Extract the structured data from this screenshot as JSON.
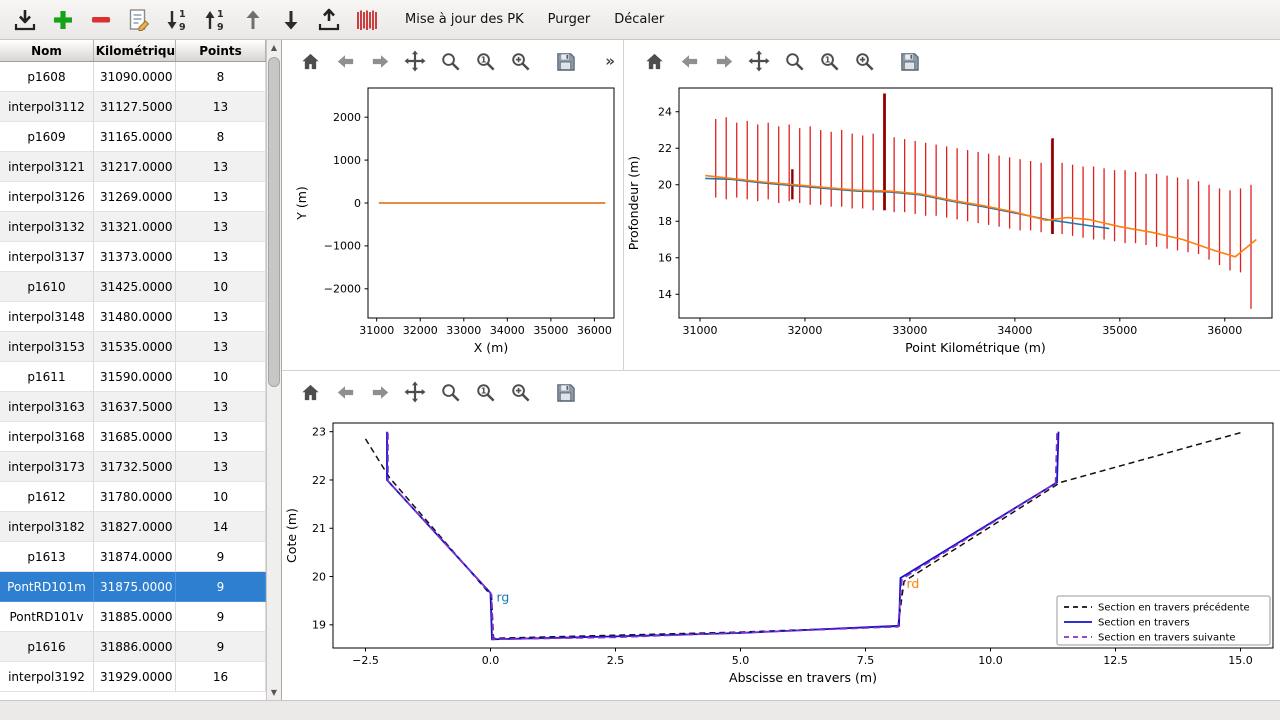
{
  "colors": {
    "selection": "#2e7fd0",
    "bars_red": "#e02020",
    "dark_red": "#8b0000",
    "blue": "#1f77b4",
    "orange": "#ff7f0e",
    "section_blue": "#1212cc",
    "section_purple": "#8b2fc9",
    "section_prev_black": "#111111"
  },
  "main_toolbar": {
    "icons": [
      "import",
      "add",
      "remove",
      "edit",
      "sort-numeric-desc",
      "sort-numeric-asc",
      "move-up",
      "move-down",
      "export",
      "sections"
    ],
    "buttons": [
      {
        "id": "maj-pk",
        "label": "Mise à jour des PK"
      },
      {
        "id": "purger",
        "label": "Purger"
      },
      {
        "id": "decaler",
        "label": "Décaler"
      }
    ]
  },
  "table": {
    "columns": [
      "Nom",
      "t Kilométrique",
      "Points"
    ],
    "rows": [
      {
        "nom": "p1608",
        "pk": "31090.0000",
        "points": "8",
        "selected": false
      },
      {
        "nom": "interpol3112",
        "pk": "31127.5000",
        "points": "13",
        "selected": false
      },
      {
        "nom": "p1609",
        "pk": "31165.0000",
        "points": "8",
        "selected": false
      },
      {
        "nom": "interpol3121",
        "pk": "31217.0000",
        "points": "13",
        "selected": false
      },
      {
        "nom": "interpol3126",
        "pk": "31269.0000",
        "points": "13",
        "selected": false
      },
      {
        "nom": "interpol3132",
        "pk": "31321.0000",
        "points": "13",
        "selected": false
      },
      {
        "nom": "interpol3137",
        "pk": "31373.0000",
        "points": "13",
        "selected": false
      },
      {
        "nom": "p1610",
        "pk": "31425.0000",
        "points": "10",
        "selected": false
      },
      {
        "nom": "interpol3148",
        "pk": "31480.0000",
        "points": "13",
        "selected": false
      },
      {
        "nom": "interpol3153",
        "pk": "31535.0000",
        "points": "13",
        "selected": false
      },
      {
        "nom": "p1611",
        "pk": "31590.0000",
        "points": "10",
        "selected": false
      },
      {
        "nom": "interpol3163",
        "pk": "31637.5000",
        "points": "13",
        "selected": false
      },
      {
        "nom": "interpol3168",
        "pk": "31685.0000",
        "points": "13",
        "selected": false
      },
      {
        "nom": "interpol3173",
        "pk": "31732.5000",
        "points": "13",
        "selected": false
      },
      {
        "nom": "p1612",
        "pk": "31780.0000",
        "points": "10",
        "selected": false
      },
      {
        "nom": "interpol3182",
        "pk": "31827.0000",
        "points": "14",
        "selected": false
      },
      {
        "nom": "p1613",
        "pk": "31874.0000",
        "points": "9",
        "selected": false
      },
      {
        "nom": "PontRD101m",
        "pk": "31875.0000",
        "points": "9",
        "selected": true
      },
      {
        "nom": "PontRD101v",
        "pk": "31885.0000",
        "points": "9",
        "selected": false
      },
      {
        "nom": "p1616",
        "pk": "31886.0000",
        "points": "9",
        "selected": false
      },
      {
        "nom": "interpol3192",
        "pk": "31929.0000",
        "points": "16",
        "selected": false
      }
    ]
  },
  "plot_toolbar": {
    "icons": [
      "home",
      "back",
      "forward",
      "pan",
      "zoom",
      "zoom-one",
      "zoom-plus",
      "save"
    ],
    "overflow": "»"
  },
  "chart_data": [
    {
      "id": "plan",
      "type": "line",
      "xlabel": "X (m)",
      "ylabel": "Y (m)",
      "xlim": [
        30800,
        36450
      ],
      "ylim": [
        -2680,
        2680
      ],
      "xticks": {
        "values": [
          31000,
          32000,
          33000,
          34000,
          35000,
          36000
        ],
        "labels": [
          "31000",
          "32000",
          "33000",
          "34000",
          "35000",
          "36000"
        ]
      },
      "yticks": {
        "values": [
          -2000,
          -1000,
          0,
          1000,
          2000
        ],
        "labels": [
          "−2000",
          "−1000",
          "0",
          "1000",
          "2000"
        ]
      },
      "series": [
        {
          "name": "axe-hydraulique-bleu",
          "color": "#1f77b4",
          "width": 1.6,
          "points": [
            [
              31050,
              0
            ],
            [
              36250,
              0
            ]
          ]
        },
        {
          "name": "axe-hydraulique-orange",
          "color": "#ff7f0e",
          "width": 1.4,
          "points": [
            [
              31050,
              0
            ],
            [
              36250,
              0
            ]
          ]
        }
      ]
    },
    {
      "id": "prof",
      "type": "line",
      "xlabel": "Point Kilométrique (m)",
      "ylabel": "Profondeur (m)",
      "xlim": [
        30800,
        36450
      ],
      "ylim": [
        12.7,
        25.3
      ],
      "xticks": {
        "values": [
          31000,
          32000,
          33000,
          34000,
          35000,
          36000
        ],
        "labels": [
          "31000",
          "32000",
          "33000",
          "34000",
          "35000",
          "36000"
        ]
      },
      "yticks": {
        "values": [
          14,
          16,
          18,
          20,
          22,
          24
        ],
        "labels": [
          "14",
          "16",
          "18",
          "20",
          "22",
          "24"
        ]
      },
      "vbars": [
        {
          "name": "sections-en-travers",
          "color": "#e02020",
          "width": 1.3,
          "data": [
            [
              31150,
              19.3,
              23.6
            ],
            [
              31250,
              19.2,
              23.7
            ],
            [
              31350,
              19.3,
              23.4
            ],
            [
              31450,
              19.2,
              23.5
            ],
            [
              31550,
              19.1,
              23.3
            ],
            [
              31650,
              19.2,
              23.4
            ],
            [
              31750,
              19.0,
              23.2
            ],
            [
              31850,
              19.1,
              23.3
            ],
            [
              31950,
              19.0,
              23.1
            ],
            [
              32050,
              18.9,
              23.2
            ],
            [
              32150,
              18.9,
              23.0
            ],
            [
              32250,
              18.8,
              22.9
            ],
            [
              32350,
              18.8,
              23.0
            ],
            [
              32450,
              18.7,
              22.8
            ],
            [
              32550,
              18.7,
              22.7
            ],
            [
              32650,
              18.6,
              22.8
            ],
            [
              32750,
              18.6,
              25.0
            ],
            [
              32850,
              18.5,
              22.6
            ],
            [
              32950,
              18.5,
              22.5
            ],
            [
              33050,
              18.4,
              22.4
            ],
            [
              33150,
              18.3,
              22.3
            ],
            [
              33250,
              18.3,
              22.2
            ],
            [
              33350,
              18.2,
              22.1
            ],
            [
              33450,
              18.1,
              22.0
            ],
            [
              33550,
              18.0,
              21.9
            ],
            [
              33650,
              17.9,
              21.8
            ],
            [
              33750,
              17.8,
              21.7
            ],
            [
              33850,
              17.7,
              21.6
            ],
            [
              33950,
              17.6,
              21.5
            ],
            [
              34050,
              17.5,
              21.4
            ],
            [
              34150,
              17.5,
              21.3
            ],
            [
              34250,
              17.4,
              21.2
            ],
            [
              34350,
              17.3,
              22.5
            ],
            [
              34450,
              17.3,
              21.2
            ],
            [
              34550,
              17.2,
              21.1
            ],
            [
              34650,
              17.1,
              21.0
            ],
            [
              34750,
              17.0,
              21.0
            ],
            [
              34850,
              17.0,
              20.9
            ],
            [
              34950,
              16.9,
              20.8
            ],
            [
              35050,
              16.8,
              20.8
            ],
            [
              35150,
              16.8,
              20.7
            ],
            [
              35250,
              16.7,
              20.6
            ],
            [
              35350,
              16.6,
              20.6
            ],
            [
              35450,
              16.5,
              20.5
            ],
            [
              35550,
              16.4,
              20.4
            ],
            [
              35650,
              16.3,
              20.3
            ],
            [
              35750,
              16.2,
              20.2
            ],
            [
              35850,
              15.9,
              20.0
            ],
            [
              35950,
              15.6,
              19.8
            ],
            [
              36050,
              15.3,
              19.7
            ],
            [
              36150,
              15.2,
              19.8
            ],
            [
              36250,
              13.2,
              20.0
            ]
          ]
        },
        {
          "name": "sections-particulieres",
          "color": "#8b0000",
          "width": 2.4,
          "data": [
            [
              31880,
              19.2,
              20.85
            ],
            [
              32760,
              18.6,
              25.0
            ],
            [
              34360,
              17.3,
              22.55
            ]
          ]
        }
      ],
      "series": [
        {
          "name": "fond-bleu",
          "color": "#1f77b4",
          "width": 1.6,
          "points": [
            [
              31050,
              20.35
            ],
            [
              31300,
              20.3
            ],
            [
              31600,
              20.1
            ],
            [
              31900,
              19.95
            ],
            [
              32200,
              19.8
            ],
            [
              32500,
              19.65
            ],
            [
              32800,
              19.6
            ],
            [
              33100,
              19.45
            ],
            [
              33400,
              19.1
            ],
            [
              33700,
              18.8
            ],
            [
              34000,
              18.45
            ],
            [
              34300,
              18.1
            ],
            [
              34600,
              17.85
            ],
            [
              34900,
              17.6
            ]
          ]
        },
        {
          "name": "fond-orange",
          "color": "#ff7f0e",
          "width": 1.6,
          "points": [
            [
              31050,
              20.5
            ],
            [
              31300,
              20.35
            ],
            [
              31600,
              20.15
            ],
            [
              31900,
              20.0
            ],
            [
              32200,
              19.85
            ],
            [
              32500,
              19.7
            ],
            [
              32800,
              19.65
            ],
            [
              33100,
              19.5
            ],
            [
              33400,
              19.15
            ],
            [
              33700,
              18.85
            ],
            [
              34000,
              18.5
            ],
            [
              34300,
              18.05
            ],
            [
              34500,
              18.2
            ],
            [
              34700,
              18.1
            ],
            [
              35000,
              17.7
            ],
            [
              35300,
              17.4
            ],
            [
              35600,
              17.0
            ],
            [
              35900,
              16.4
            ],
            [
              36100,
              16.05
            ],
            [
              36300,
              17.0
            ]
          ]
        }
      ]
    },
    {
      "id": "section",
      "type": "line",
      "xlabel": "Abscisse en travers (m)",
      "ylabel": "Cote (m)",
      "xlim": [
        -3.15,
        15.65
      ],
      "ylim": [
        18.52,
        23.18
      ],
      "xticks": {
        "values": [
          -2.5,
          0,
          2.5,
          5,
          7.5,
          10,
          12.5,
          15
        ],
        "labels": [
          "−2.5",
          "0.0",
          "2.5",
          "5.0",
          "7.5",
          "10.0",
          "12.5",
          "15.0"
        ]
      },
      "yticks": {
        "values": [
          19,
          20,
          21,
          22,
          23
        ],
        "labels": [
          "19",
          "20",
          "21",
          "22",
          "23"
        ]
      },
      "series": [
        {
          "name": "section-precedente",
          "color": "#111111",
          "width": 1.5,
          "dash": "6,4",
          "points": [
            [
              -2.5,
              22.85
            ],
            [
              -2.02,
              22.05
            ],
            [
              0.02,
              19.6
            ],
            [
              0.06,
              18.72
            ],
            [
              5.0,
              18.85
            ],
            [
              8.15,
              18.97
            ],
            [
              8.27,
              19.9
            ],
            [
              11.4,
              21.95
            ],
            [
              15.0,
              22.98
            ]
          ]
        },
        {
          "name": "section-courante",
          "color": "#1212cc",
          "width": 1.8,
          "points": [
            [
              -2.07,
              23.0
            ],
            [
              -2.07,
              22.0
            ],
            [
              0.0,
              19.66
            ],
            [
              0.03,
              18.7
            ],
            [
              2.5,
              18.76
            ],
            [
              5.0,
              18.83
            ],
            [
              8.17,
              18.98
            ],
            [
              8.2,
              19.97
            ],
            [
              11.33,
              21.95
            ],
            [
              11.36,
              23.0
            ]
          ]
        },
        {
          "name": "section-suivante",
          "color": "#8b2fc9",
          "width": 1.6,
          "dash": "7,4",
          "points": [
            [
              -2.05,
              22.98
            ],
            [
              -2.05,
              21.98
            ],
            [
              0.02,
              19.63
            ],
            [
              0.05,
              18.7
            ],
            [
              2.5,
              18.74
            ],
            [
              8.15,
              18.96
            ],
            [
              8.23,
              19.95
            ],
            [
              11.3,
              21.93
            ],
            [
              11.33,
              22.98
            ]
          ]
        }
      ],
      "annotations": [
        {
          "x": 0.12,
          "y": 19.48,
          "text": "rg",
          "color": "#1f77b4"
        },
        {
          "x": 8.32,
          "y": 19.76,
          "text": "rd",
          "color": "#ff7f0e"
        }
      ],
      "legend": {
        "position": "lower right",
        "entries": [
          {
            "label": "Section en travers précédente",
            "color": "#111111",
            "dash": "5,4"
          },
          {
            "label": "Section en travers",
            "color": "#1212cc"
          },
          {
            "label": "Section en travers suivante",
            "color": "#8b2fc9",
            "dash": "5,4"
          }
        ]
      }
    }
  ]
}
